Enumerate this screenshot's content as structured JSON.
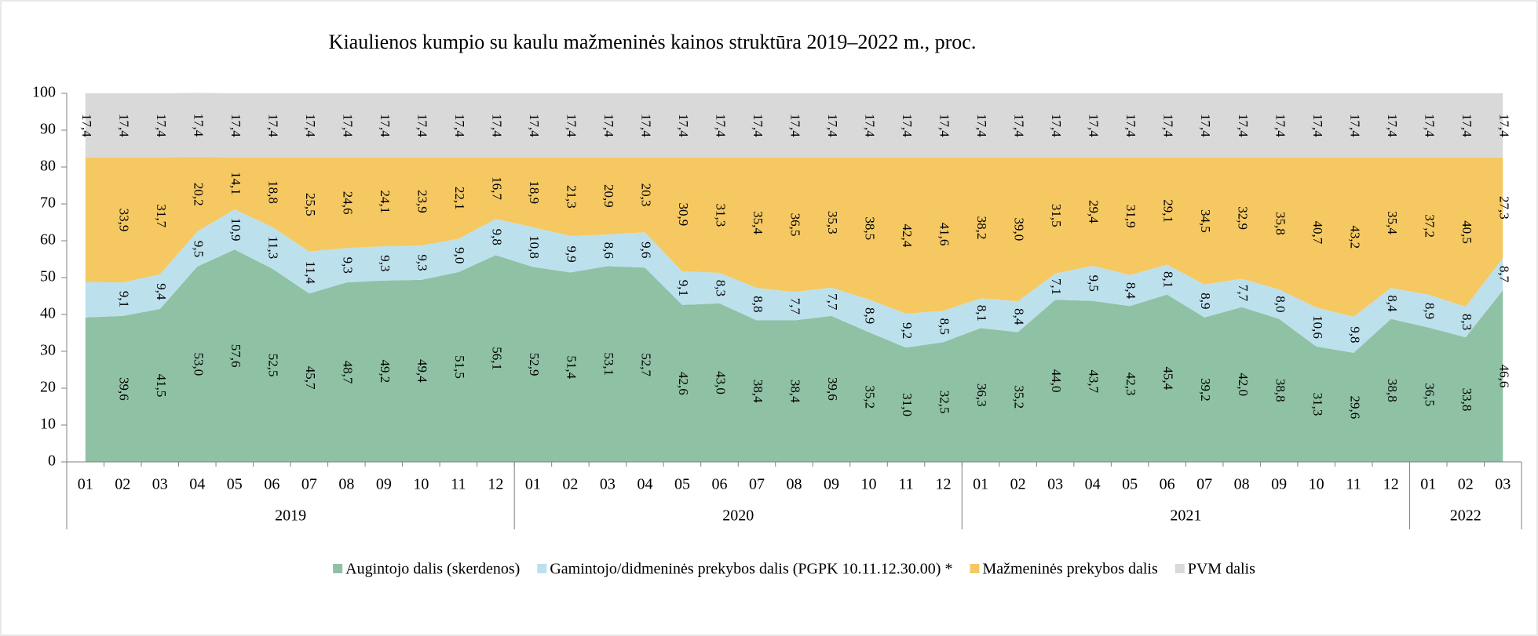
{
  "chart_data": {
    "type": "stacked-area",
    "title": "Kiaulienos kumpio su kaulu mažmeninės kainos struktūra 2019–2022 m., proc.",
    "groups": [
      {
        "name": "2019",
        "categories": [
          "01",
          "02",
          "03",
          "04",
          "05",
          "06",
          "07",
          "08",
          "09",
          "10",
          "11",
          "12"
        ]
      },
      {
        "name": "2020",
        "categories": [
          "01",
          "02",
          "03",
          "04",
          "05",
          "06",
          "07",
          "08",
          "09",
          "10",
          "11",
          "12"
        ]
      },
      {
        "name": "2021",
        "categories": [
          "01",
          "02",
          "03",
          "04",
          "05",
          "06",
          "07",
          "08",
          "09",
          "10",
          "11",
          "12"
        ]
      },
      {
        "name": "2022",
        "categories": [
          "01",
          "02",
          "03"
        ]
      }
    ],
    "ylim": [
      0,
      100
    ],
    "yticks": [
      0,
      10,
      20,
      30,
      40,
      50,
      60,
      70,
      80,
      90,
      100
    ],
    "grid": false,
    "series": [
      {
        "name": "Augintojo dalis (skerdenos)",
        "color": "#8fc1a5",
        "values": [
          39.2,
          39.6,
          41.5,
          53.0,
          57.6,
          52.5,
          45.7,
          48.7,
          49.2,
          49.4,
          51.5,
          56.1,
          52.9,
          51.4,
          53.1,
          52.7,
          42.6,
          43.0,
          38.4,
          38.4,
          39.6,
          35.2,
          31.0,
          32.5,
          36.3,
          35.2,
          44.0,
          43.7,
          42.3,
          45.4,
          39.2,
          42.0,
          38.8,
          31.3,
          29.6,
          38.8,
          36.5,
          33.8,
          46.6
        ],
        "value_labels": [
          null,
          "39,6",
          "41,5",
          "53,0",
          "57,6",
          "52,5",
          "45,7",
          "48,7",
          "49,2",
          "49,4",
          "51,5",
          "56,1",
          "52,9",
          "51,4",
          "53,1",
          "52,7",
          "42,6",
          "43,0",
          "38,4",
          "38,4",
          "39,6",
          "35,2",
          "31,0",
          "32,5",
          "36,3",
          "35,2",
          "44,0",
          "43,7",
          "42,3",
          "45,4",
          "39,2",
          "42,0",
          "38,8",
          "31,3",
          "29,6",
          "38,8",
          "36,5",
          "33,8",
          "46,6"
        ]
      },
      {
        "name": "Gamintojo/didmeninės prekybos dalis (PGPK 10.11.12.30.00) *",
        "color": "#bde0ed",
        "values": [
          9.6,
          9.1,
          9.4,
          9.5,
          10.9,
          11.3,
          11.4,
          9.3,
          9.3,
          9.3,
          9.0,
          9.8,
          10.8,
          9.9,
          8.6,
          9.6,
          9.1,
          8.3,
          8.8,
          7.7,
          7.7,
          8.9,
          9.2,
          8.5,
          8.1,
          8.4,
          7.1,
          9.5,
          8.4,
          8.1,
          8.9,
          7.7,
          8.0,
          10.6,
          9.8,
          8.4,
          8.9,
          8.3,
          8.7
        ],
        "value_labels": [
          null,
          "9,1",
          "9,4",
          "9,5",
          "10,9",
          "11,3",
          "11,4",
          "9,3",
          "9,3",
          "9,3",
          "9,0",
          "9,8",
          "10,8",
          "9,9",
          "8,6",
          "9,6",
          "9,1",
          "8,3",
          "8,8",
          "7,7",
          "7,7",
          "8,9",
          "9,2",
          "8,5",
          "8,1",
          "8,4",
          "7,1",
          "9,5",
          "8,4",
          "8,1",
          "8,9",
          "7,7",
          "8,0",
          "10,6",
          "9,8",
          "8,4",
          "8,9",
          "8,3",
          "8,7"
        ]
      },
      {
        "name": "Mažmeninės prekybos dalis",
        "color": "#f5c862",
        "values": [
          33.8,
          33.9,
          31.7,
          20.2,
          14.1,
          18.8,
          25.5,
          24.6,
          24.1,
          23.9,
          22.1,
          16.7,
          18.9,
          21.3,
          20.9,
          20.3,
          30.9,
          31.3,
          35.4,
          36.5,
          35.3,
          38.5,
          42.4,
          41.6,
          38.2,
          39.0,
          31.5,
          29.4,
          31.9,
          29.1,
          34.5,
          32.9,
          35.8,
          40.7,
          43.2,
          35.4,
          37.2,
          40.5,
          27.3
        ],
        "value_labels": [
          null,
          "33,9",
          "31,7",
          "20,2",
          "14,1",
          "18,8",
          "25,5",
          "24,6",
          "24,1",
          "23,9",
          "22,1",
          "16,7",
          "18,9",
          "21,3",
          "20,9",
          "20,3",
          "30,9",
          "31,3",
          "35,4",
          "36,5",
          "35,3",
          "38,5",
          "42,4",
          "41,6",
          "38,2",
          "39,0",
          "31,5",
          "29,4",
          "31,9",
          "29,1",
          "34,5",
          "32,9",
          "35,8",
          "40,7",
          "43,2",
          "35,4",
          "37,2",
          "40,5",
          "27,3"
        ]
      },
      {
        "name": "PVM dalis",
        "color": "#d9d9d9",
        "values": [
          17.4,
          17.4,
          17.4,
          17.4,
          17.4,
          17.4,
          17.4,
          17.4,
          17.4,
          17.4,
          17.4,
          17.4,
          17.4,
          17.4,
          17.4,
          17.4,
          17.4,
          17.4,
          17.4,
          17.4,
          17.4,
          17.4,
          17.4,
          17.4,
          17.4,
          17.4,
          17.4,
          17.4,
          17.4,
          17.4,
          17.4,
          17.4,
          17.4,
          17.4,
          17.4,
          17.4,
          17.4,
          17.4,
          17.4
        ],
        "value_labels": [
          "17,4",
          "17,4",
          "17,4",
          "17,4",
          "17,4",
          "17,4",
          "17,4",
          "17,4",
          "17,4",
          "17,4",
          "17,4",
          "17,4",
          "17,4",
          "17,4",
          "17,4",
          "17,4",
          "17,4",
          "17,4",
          "17,4",
          "17,4",
          "17,4",
          "17,4",
          "17,4",
          "17,4",
          "17,4",
          "17,4",
          "17,4",
          "17,4",
          "17,4",
          "17,4",
          "17,4",
          "17,4",
          "17,4",
          "17,4",
          "17,4",
          "17,4",
          "17,4",
          "17,4",
          "17,4"
        ]
      }
    ]
  }
}
